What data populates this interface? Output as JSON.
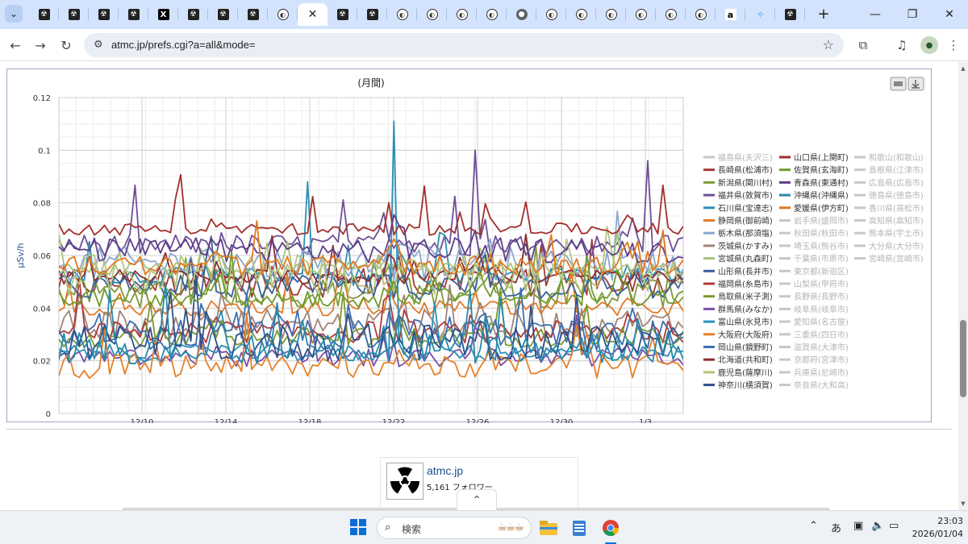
{
  "browser": {
    "tabs": [
      {
        "icon": "atmc"
      },
      {
        "icon": "atmc"
      },
      {
        "icon": "atmc"
      },
      {
        "icon": "atmc"
      },
      {
        "icon": "x"
      },
      {
        "icon": "atmc"
      },
      {
        "icon": "atmc"
      },
      {
        "icon": "atmc"
      },
      {
        "icon": "circle"
      },
      {
        "icon": "close",
        "active": true
      },
      {
        "icon": "atmc"
      },
      {
        "icon": "atmc"
      },
      {
        "icon": "circle"
      },
      {
        "icon": "circle"
      },
      {
        "icon": "circle"
      },
      {
        "icon": "circle"
      },
      {
        "icon": "globe"
      },
      {
        "icon": "circle"
      },
      {
        "icon": "circle"
      },
      {
        "icon": "circle"
      },
      {
        "icon": "circle"
      },
      {
        "icon": "circle"
      },
      {
        "icon": "circle"
      },
      {
        "icon": "amazon"
      },
      {
        "icon": "sparkle"
      },
      {
        "icon": "atmc"
      }
    ],
    "address": "atmc.jp/prefs.cgi?a=all&mode="
  },
  "chart": {
    "title": "(月間)",
    "ylabel": "μSv/h"
  },
  "chart_data": {
    "type": "line",
    "title": "(月間)",
    "ylabel": "μSv/h",
    "ylim": [
      0,
      0.12
    ],
    "yticks": [
      "0",
      "0.02",
      "0.04",
      "0.06",
      "0.08",
      "0.1",
      "0.12"
    ],
    "xticks": [
      "12/10",
      "12/14",
      "12/18",
      "12/22",
      "12/26",
      "12/30",
      "1/3"
    ],
    "grid": true,
    "legend_placement": "right",
    "series": [
      {
        "name": "福島県(夫沢三)",
        "color": "#bdbdbd",
        "hidden": true,
        "base": 0
      },
      {
        "name": "長崎県(松浦市)",
        "color": "#a33a36",
        "hidden": false,
        "base": 0.05
      },
      {
        "name": "新潟県(関川村)",
        "color": "#7f9a3a",
        "hidden": false,
        "base": 0.046
      },
      {
        "name": "福井県(敦賀市)",
        "color": "#6e4f96",
        "hidden": false,
        "base": 0.064
      },
      {
        "name": "石川県(宝達志)",
        "color": "#2f8fb0",
        "hidden": false,
        "base": 0.052
      },
      {
        "name": "静岡県(御前崎)",
        "color": "#e07b2a",
        "hidden": false,
        "base": 0.04
      },
      {
        "name": "栃木県(那須塩)",
        "color": "#8da6d0",
        "hidden": false,
        "base": 0.057
      },
      {
        "name": "茨城県(かすみ)",
        "color": "#a08478",
        "hidden": false,
        "base": 0.034
      },
      {
        "name": "宮城県(丸森町)",
        "color": "#a7c47a",
        "hidden": false,
        "base": 0.055
      },
      {
        "name": "山形県(長井市)",
        "color": "#3a5f9a",
        "hidden": false,
        "base": 0.048
      },
      {
        "name": "福岡県(糸島市)",
        "color": "#b03a3a",
        "hidden": false,
        "base": 0.031
      },
      {
        "name": "鳥取県(米子測)",
        "color": "#7a9a30",
        "hidden": false,
        "base": 0.029
      },
      {
        "name": "群馬県(みなか)",
        "color": "#7a4fa6",
        "hidden": false,
        "base": 0.021
      },
      {
        "name": "富山県(氷見市)",
        "color": "#2a8fb8",
        "hidden": false,
        "base": 0.023
      },
      {
        "name": "大阪府(大阪府)",
        "color": "#e4822a",
        "hidden": false,
        "base": 0.018
      },
      {
        "name": "岡山県(鏡野町)",
        "color": "#3d6fb3",
        "hidden": false,
        "base": 0.03
      },
      {
        "name": "北海道(共和町)",
        "color": "#8a2f2f",
        "hidden": false,
        "base": 0.052
      },
      {
        "name": "鹿児島(薩摩川)",
        "color": "#b5c47a",
        "hidden": false,
        "base": 0.053
      },
      {
        "name": "神奈川(横須賀)",
        "color": "#2e4f8a",
        "hidden": false,
        "base": 0.027
      },
      {
        "name": "山口県(上関町)",
        "color": "#a3302c",
        "hidden": false,
        "base": 0.07
      },
      {
        "name": "佐賀県(玄海町)",
        "color": "#6f9a2a",
        "hidden": false,
        "base": 0.044
      },
      {
        "name": "青森県(東通村)",
        "color": "#5e3f8a",
        "hidden": false,
        "base": 0.062
      },
      {
        "name": "沖縄県(沖縄県)",
        "color": "#2789a8",
        "hidden": false,
        "base": 0.025
      },
      {
        "name": "愛媛県(伊方町)",
        "color": "#e0781f",
        "hidden": false,
        "base": 0.056
      },
      {
        "name": "岩手県(盛岡市)",
        "color": "#bdbdbd",
        "hidden": true,
        "base": 0
      },
      {
        "name": "秋田県(秋田市)",
        "color": "#bdbdbd",
        "hidden": true,
        "base": 0
      },
      {
        "name": "埼玉県(熊谷市)",
        "color": "#bdbdbd",
        "hidden": true,
        "base": 0
      },
      {
        "name": "千葉県(市原市)",
        "color": "#bdbdbd",
        "hidden": true,
        "base": 0
      },
      {
        "name": "東京都(新宿区)",
        "color": "#bdbdbd",
        "hidden": true,
        "base": 0
      },
      {
        "name": "山梨県(甲府市)",
        "color": "#bdbdbd",
        "hidden": true,
        "base": 0
      },
      {
        "name": "長野県(長野市)",
        "color": "#bdbdbd",
        "hidden": true,
        "base": 0
      },
      {
        "name": "岐阜県(岐阜市)",
        "color": "#bdbdbd",
        "hidden": true,
        "base": 0
      },
      {
        "name": "愛知県(名古屋)",
        "color": "#bdbdbd",
        "hidden": true,
        "base": 0
      },
      {
        "name": "三重県(四日市)",
        "color": "#bdbdbd",
        "hidden": true,
        "base": 0
      },
      {
        "name": "滋賀県(大津市)",
        "color": "#bdbdbd",
        "hidden": true,
        "base": 0
      },
      {
        "name": "京都府(宮津市)",
        "color": "#bdbdbd",
        "hidden": true,
        "base": 0
      },
      {
        "name": "兵庫県(尼崎市)",
        "color": "#bdbdbd",
        "hidden": true,
        "base": 0
      },
      {
        "name": "奈良県(大和高)",
        "color": "#bdbdbd",
        "hidden": true,
        "base": 0
      },
      {
        "name": "和歌山(和歌山)",
        "color": "#bdbdbd",
        "hidden": true,
        "base": 0
      },
      {
        "name": "島根県(江津市)",
        "color": "#bdbdbd",
        "hidden": true,
        "base": 0
      },
      {
        "name": "広島県(広島市)",
        "color": "#bdbdbd",
        "hidden": true,
        "base": 0
      },
      {
        "name": "徳島県(徳島市)",
        "color": "#bdbdbd",
        "hidden": true,
        "base": 0
      },
      {
        "name": "香川県(高松市)",
        "color": "#bdbdbd",
        "hidden": true,
        "base": 0
      },
      {
        "name": "高知県(高知市)",
        "color": "#bdbdbd",
        "hidden": true,
        "base": 0
      },
      {
        "name": "熊本県(宇土市)",
        "color": "#bdbdbd",
        "hidden": true,
        "base": 0
      },
      {
        "name": "大分県(大分市)",
        "color": "#bdbdbd",
        "hidden": true,
        "base": 0
      },
      {
        "name": "宮崎県(宮崎市)",
        "color": "#bdbdbd",
        "hidden": true,
        "base": 0
      }
    ],
    "peaks": [
      {
        "series": "富山県(氷見市)",
        "x": "12/22",
        "y": 0.111
      },
      {
        "series": "福井県(敦賀市)",
        "x": "12/26",
        "y": 0.1
      },
      {
        "series": "福井県(敦賀市)",
        "x": "1/3",
        "y": 0.096
      },
      {
        "series": "石川県(宝達志)",
        "x": "12/18",
        "y": 0.088
      }
    ]
  },
  "card": {
    "name": "atmc.jp",
    "followers": "5,161 フォロワー"
  },
  "taskbar": {
    "search_label": "検索",
    "ime": "あ",
    "time": "23:03",
    "date": "2026/01/04"
  }
}
